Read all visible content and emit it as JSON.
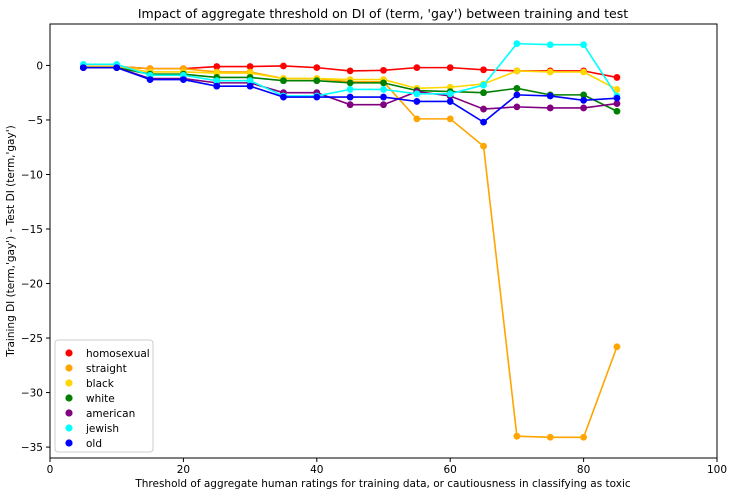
{
  "chart_data": {
    "type": "line",
    "title": "Impact of aggregate threshold on DI of (term, 'gay') between training and test",
    "xlabel": "Threshold of aggregate human ratings for training data, or cautiousness in classifying as toxic",
    "ylabel": "Training DI (term,'gay') - Test DI (term,'gay')",
    "xlim": [
      0,
      100
    ],
    "ylim": [
      -36,
      3.8
    ],
    "xticks": [
      0,
      20,
      40,
      60,
      80,
      100
    ],
    "yticks": [
      0,
      -5,
      -10,
      -15,
      -20,
      -25,
      -30,
      -35
    ],
    "grid": false,
    "legend_position": "lower-left",
    "x": [
      5,
      10,
      15,
      20,
      25,
      30,
      35,
      40,
      45,
      50,
      55,
      60,
      65,
      70,
      75,
      80,
      85
    ],
    "series": [
      {
        "name": "homosexual",
        "color": "#ff0000",
        "values": [
          -0.1,
          -0.1,
          -0.3,
          -0.3,
          -0.1,
          -0.1,
          -0.05,
          -0.2,
          -0.5,
          -0.45,
          -0.2,
          -0.2,
          -0.4,
          -0.5,
          -0.5,
          -0.5,
          -1.1
        ]
      },
      {
        "name": "straight",
        "color": "#ffa500",
        "values": [
          -0.1,
          -0.1,
          -0.3,
          -0.3,
          -0.6,
          -0.6,
          -1.2,
          -1.2,
          -1.5,
          -1.5,
          -4.9,
          -4.9,
          -7.4,
          -34.0,
          -34.1,
          -34.1,
          -25.8
        ]
      },
      {
        "name": "black",
        "color": "#ffd700",
        "values": [
          -0.1,
          -0.1,
          -0.6,
          -0.6,
          -0.7,
          -0.7,
          -1.2,
          -1.2,
          -1.3,
          -1.3,
          -2.1,
          -2.0,
          -1.7,
          -0.5,
          -0.6,
          -0.6,
          -2.2
        ]
      },
      {
        "name": "white",
        "color": "#008000",
        "values": [
          -0.2,
          -0.2,
          -0.8,
          -0.8,
          -1.1,
          -1.1,
          -1.4,
          -1.4,
          -1.6,
          -1.6,
          -2.3,
          -2.4,
          -2.5,
          -2.1,
          -2.7,
          -2.7,
          -4.2
        ]
      },
      {
        "name": "american",
        "color": "#800080",
        "values": [
          -0.2,
          -0.2,
          -1.2,
          -1.2,
          -1.6,
          -1.6,
          -2.5,
          -2.5,
          -3.6,
          -3.6,
          -2.4,
          -2.8,
          -4.0,
          -3.8,
          -3.9,
          -3.9,
          -3.5
        ]
      },
      {
        "name": "jewish",
        "color": "#00ffff",
        "values": [
          0.1,
          0.1,
          -0.9,
          -0.9,
          -1.4,
          -1.4,
          -2.8,
          -2.8,
          -2.2,
          -2.2,
          -2.6,
          -2.6,
          -1.8,
          2.0,
          1.9,
          1.9,
          -2.8
        ]
      },
      {
        "name": "old",
        "color": "#0000ff",
        "values": [
          -0.2,
          -0.2,
          -1.3,
          -1.3,
          -1.9,
          -1.9,
          -2.9,
          -2.9,
          -2.9,
          -2.9,
          -3.3,
          -3.3,
          -5.2,
          -2.7,
          -2.8,
          -3.2,
          -3.0
        ]
      }
    ]
  }
}
